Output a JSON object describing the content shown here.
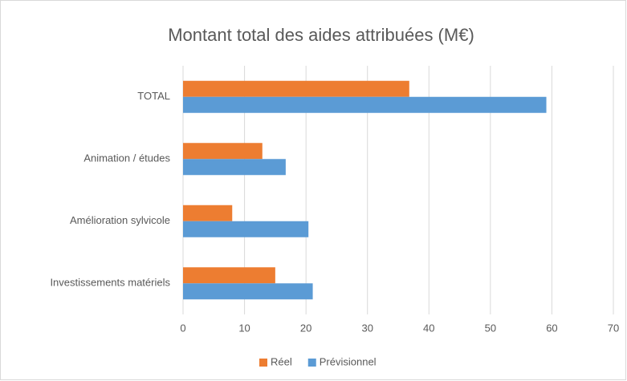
{
  "chart_data": {
    "type": "hbar",
    "title": "Montant total des aides attribuées (M€)",
    "categories": [
      "TOTAL",
      "Animation / études",
      "Amélioration sylvicole",
      "Investissements matériels"
    ],
    "series": [
      {
        "name": "Réel",
        "color": "#ed7d31",
        "values": [
          36.8,
          12.9,
          8.0,
          15.0
        ]
      },
      {
        "name": "Prévisionnel",
        "color": "#5b9bd5",
        "values": [
          59.1,
          16.7,
          20.4,
          21.1
        ]
      }
    ],
    "xlim": [
      0,
      70
    ],
    "xticks": [
      0,
      10,
      20,
      30,
      40,
      50,
      60,
      70
    ],
    "grid": true,
    "legend": "bottom"
  }
}
